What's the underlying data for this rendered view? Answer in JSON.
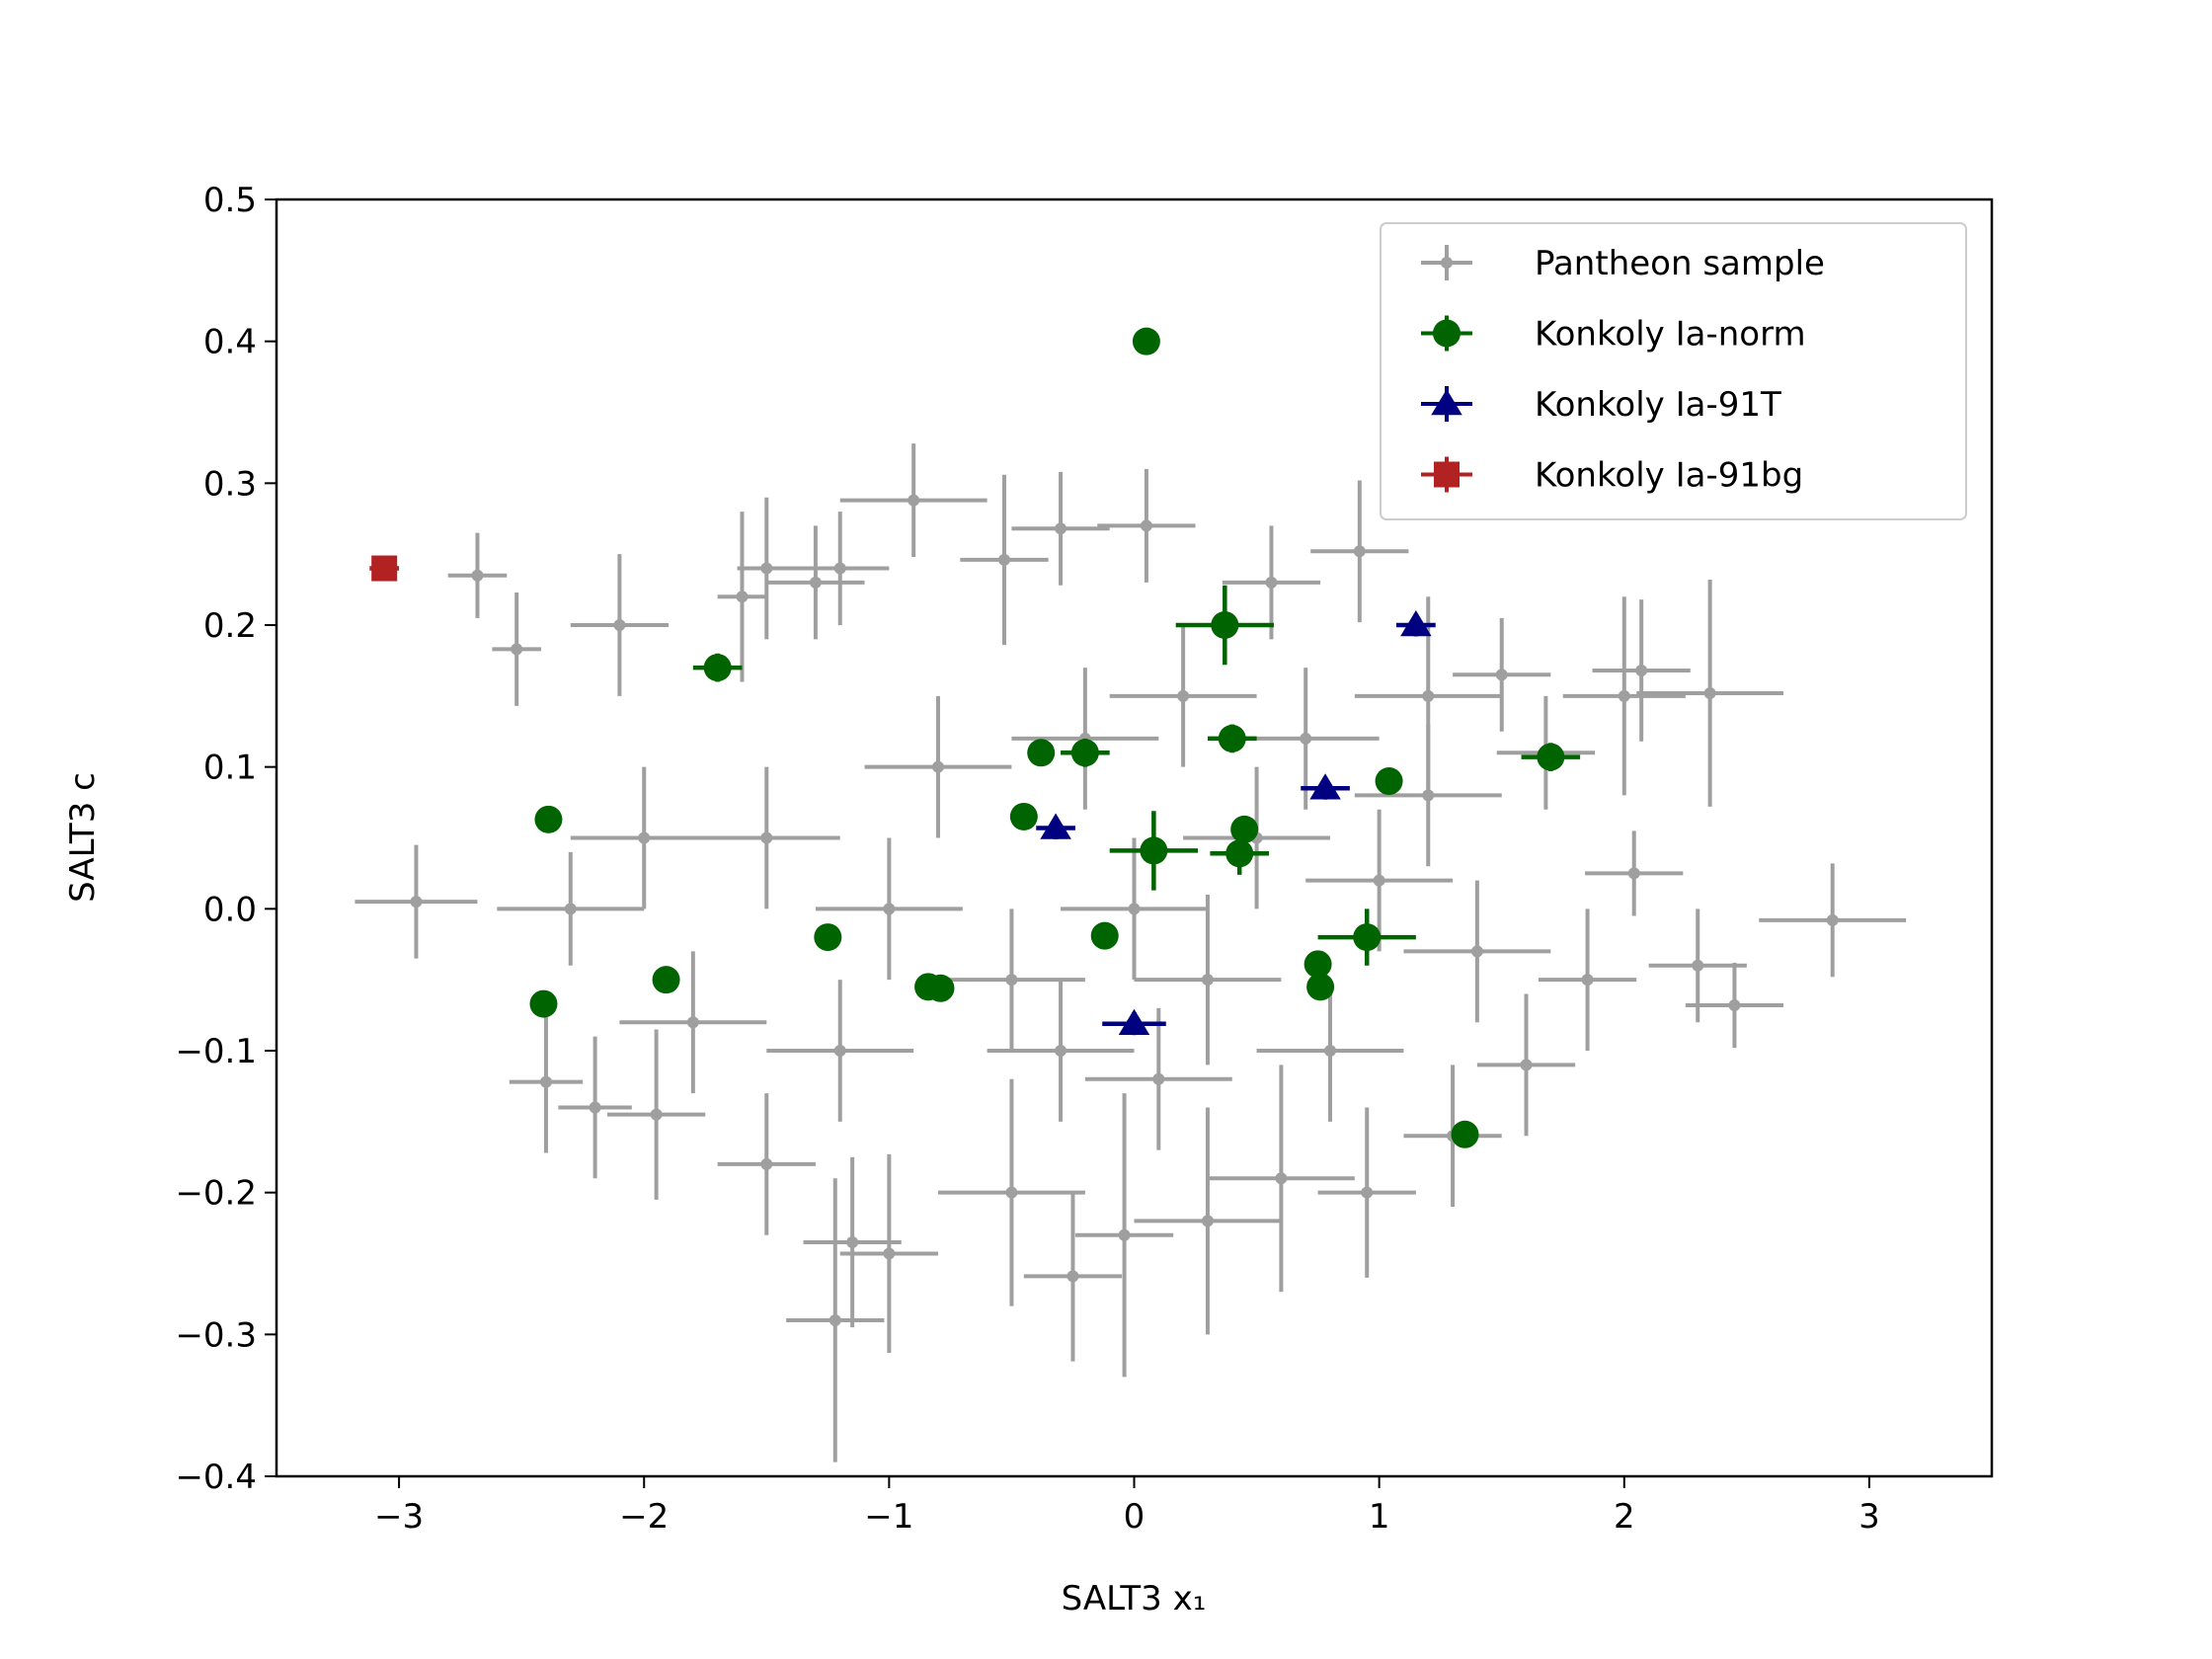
{
  "chart_data": {
    "type": "errorbar-scatter",
    "xlabel": "SALT3 x₁",
    "ylabel": "SALT3 c",
    "xlim": [
      -3.5,
      3.5
    ],
    "ylim": [
      -0.4,
      0.5
    ],
    "xticks": [
      {
        "value": -3,
        "label": "−3"
      },
      {
        "value": -2,
        "label": "−2"
      },
      {
        "value": -1,
        "label": "−1"
      },
      0,
      1,
      2,
      3
    ],
    "yticks": [
      {
        "value": -0.4,
        "label": "−0.4"
      },
      {
        "value": -0.3,
        "label": "−0.3"
      },
      {
        "value": -0.2,
        "label": "−0.2"
      },
      {
        "value": -0.1,
        "label": "−0.1"
      },
      {
        "value": 0,
        "label": "0.0"
      },
      0.1,
      0.2,
      0.3,
      0.4,
      0.5
    ],
    "legend": "upper right",
    "series": [
      {
        "name": "Pantheon sample",
        "color": "#808080",
        "alpha": 0.75,
        "marker": "dot",
        "x": [
          -2.93,
          -2.68,
          -2.52,
          -2.4,
          -2.2,
          -2.1,
          -1.95,
          -1.6,
          -1.5,
          -1.3,
          -1.2,
          -1.22,
          -1.15,
          -1.0,
          -0.9,
          -0.53,
          -0.3,
          -0.25,
          0.05,
          -0.04,
          0.56,
          0.92,
          1.2,
          1.5,
          1.68,
          2.0,
          2.07,
          2.35,
          2.85,
          2.45,
          2.3,
          2.04,
          1.85,
          1.6,
          1.3,
          0.95,
          0.6,
          0.3,
          -0.5,
          -1.5,
          -0.5,
          0,
          0.3,
          0.5,
          -1,
          -1.5,
          -2,
          -1.8,
          1,
          1.4,
          -0.2,
          0.2,
          0.7,
          -0.8,
          -1.2,
          0.1,
          0.8,
          -0.3,
          1.2,
          -2.3
        ],
        "values": [
          0.005,
          0.235,
          0.183,
          -0.122,
          -0.14,
          0.2,
          -0.145,
          0.22,
          0.24,
          0.23,
          0.24,
          -0.29,
          -0.235,
          -0.243,
          0.288,
          0.246,
          0.268,
          -0.259,
          0.27,
          -0.23,
          0.23,
          0.252,
          0.15,
          0.165,
          0.11,
          0.15,
          0.168,
          0.152,
          -0.008,
          -0.068,
          -0.04,
          0.025,
          -0.05,
          -0.11,
          -0.16,
          -0.2,
          -0.19,
          -0.22,
          -0.2,
          -0.18,
          -0.05,
          0,
          -0.05,
          0.05,
          0,
          0.05,
          0.05,
          -0.08,
          0.02,
          -0.03,
          0.12,
          0.15,
          0.12,
          0.1,
          -0.1,
          -0.12,
          -0.1,
          -0.1,
          0.08,
          0
        ],
        "xerr": [
          0.25,
          0.12,
          0.1,
          0.15,
          0.15,
          0.2,
          0.2,
          0.1,
          0.12,
          0.2,
          0.2,
          0.2,
          0.2,
          0.2,
          0.3,
          0.18,
          0.2,
          0.2,
          0.2,
          0.2,
          0.2,
          0.2,
          0.3,
          0.2,
          0.2,
          0.25,
          0.2,
          0.3,
          0.3,
          0.2,
          0.2,
          0.2,
          0.2,
          0.2,
          0.2,
          0.2,
          0.3,
          0.3,
          0.3,
          0.2,
          0.3,
          0.3,
          0.3,
          0.3,
          0.3,
          0.3,
          0.3,
          0.3,
          0.3,
          0.3,
          0.3,
          0.3,
          0.3,
          0.3,
          0.3,
          0.3,
          0.3,
          0.3,
          0.3,
          0.3
        ],
        "yerr": [
          0.04,
          0.03,
          0.04,
          0.05,
          0.05,
          0.05,
          0.06,
          0.06,
          0.05,
          0.04,
          0.04,
          0.1,
          0.06,
          0.07,
          0.04,
          0.06,
          0.04,
          0.06,
          0.04,
          0.1,
          0.04,
          0.05,
          0.07,
          0.04,
          0.04,
          0.07,
          0.05,
          0.08,
          0.04,
          0.03,
          0.04,
          0.03,
          0.05,
          0.05,
          0.05,
          0.06,
          0.08,
          0.08,
          0.08,
          0.05,
          0.05,
          0.05,
          0.06,
          0.05,
          0.05,
          0.05,
          0.05,
          0.05,
          0.05,
          0.05,
          0.05,
          0.05,
          0.05,
          0.05,
          0.05,
          0.05,
          0.05,
          0.05,
          0.05,
          0.04
        ]
      },
      {
        "name": "Konkoly Ia-norm",
        "color": "#006400",
        "marker": "circle",
        "x": [
          0.05,
          0.37,
          -1.7,
          0.4,
          -0.38,
          -0.2,
          1.04,
          1.7,
          -2.39,
          -0.45,
          0.45,
          0.08,
          0.43,
          -1.25,
          -0.12,
          0.95,
          -1.91,
          0.75,
          0.76,
          -0.84,
          -0.79,
          -2.41,
          1.35
        ],
        "values": [
          0.4,
          0.2,
          0.17,
          0.12,
          0.11,
          0.11,
          0.09,
          0.107,
          0.063,
          0.065,
          0.056,
          0.041,
          0.039,
          -0.02,
          -0.019,
          -0.02,
          -0.05,
          -0.039,
          -0.055,
          -0.055,
          -0.056,
          -0.067,
          -0.159
        ],
        "xerr": [
          0.05,
          0.2,
          0.1,
          0.1,
          0.05,
          0.1,
          0.05,
          0.12,
          0.05,
          0.05,
          0.05,
          0.18,
          0.12,
          0.05,
          0.05,
          0.2,
          0.05,
          0.05,
          0.05,
          0.05,
          0.05,
          0.05,
          0.05
        ],
        "yerr": [
          0.008,
          0.028,
          0.01,
          0.01,
          0.008,
          0.01,
          0.008,
          0.01,
          0.008,
          0.008,
          0.008,
          0.028,
          0.015,
          0.008,
          0.008,
          0.02,
          0.008,
          0.008,
          0.008,
          0.008,
          0.008,
          0.008,
          0.008
        ]
      },
      {
        "name": "Konkoly Ia-91T",
        "color": "#000080",
        "marker": "triangle",
        "x": [
          1.15,
          0.78,
          -0.32,
          0
        ],
        "values": [
          0.2,
          0.085,
          0.057,
          -0.081
        ],
        "xerr": [
          0.08,
          0.1,
          0.08,
          0.13
        ],
        "yerr": [
          0.008,
          0.008,
          0.008,
          0.008
        ]
      },
      {
        "name": "Konkoly Ia-91bg",
        "color": "#b22222",
        "marker": "square",
        "x": [
          -3.06
        ],
        "values": [
          0.24
        ],
        "xerr": [
          0.06
        ],
        "yerr": [
          0.008
        ]
      }
    ]
  }
}
